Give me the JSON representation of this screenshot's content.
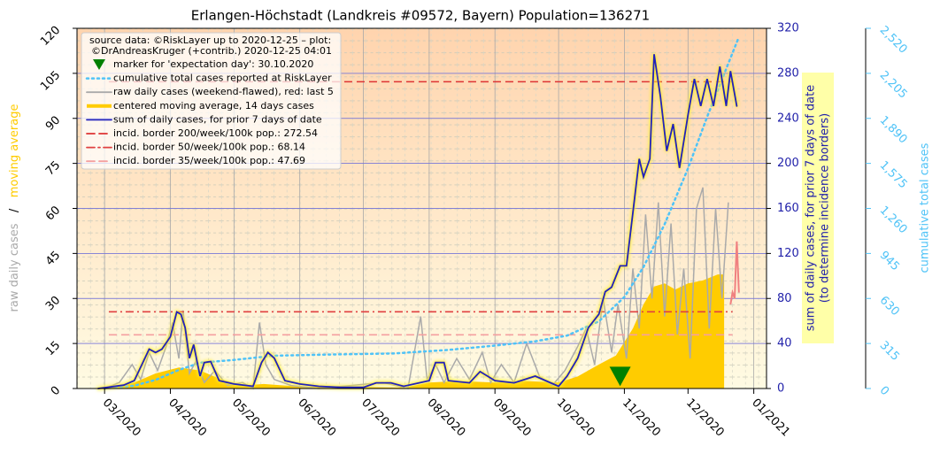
{
  "chart_data": {
    "type": "line",
    "title": "Erlangen-Höchstadt (Landkreis #09572, Bayern) Population=136271",
    "legend_header": [
      "source data: ©RiskLayer up to 2020-12-25 – plot:",
      "©DrAndreasKruger (+contrib.) 2020-12-25 04:01"
    ],
    "legend": "upper left",
    "grid": true,
    "xlim": [
      "2020-02-17",
      "2021-01-07"
    ],
    "xticks": [
      {
        "value": "2020-03-01",
        "label": "03/2020"
      },
      {
        "value": "2020-04-01",
        "label": "04/2020"
      },
      {
        "value": "2020-05-01",
        "label": "05/2020"
      },
      {
        "value": "2020-06-01",
        "label": "06/2020"
      },
      {
        "value": "2020-07-01",
        "label": "07/2020"
      },
      {
        "value": "2020-08-01",
        "label": "08/2020"
      },
      {
        "value": "2020-09-01",
        "label": "09/2020"
      },
      {
        "value": "2020-10-01",
        "label": "10/2020"
      },
      {
        "value": "2020-11-01",
        "label": "11/2020"
      },
      {
        "value": "2020-12-01",
        "label": "12/2020"
      },
      {
        "value": "2021-01-01",
        "label": "01/2021"
      }
    ],
    "ylim": [
      0,
      120
    ],
    "yticks": [
      0,
      15,
      30,
      45,
      60,
      75,
      90,
      105,
      120
    ],
    "ylabel": [
      {
        "text": "raw daily cases",
        "color": "#aaaaaa"
      },
      {
        "text": "/",
        "color": "#000000"
      },
      {
        "text": "moving average",
        "color": "#ffcc00"
      }
    ],
    "y2lim": [
      0,
      320
    ],
    "y2ticks": [
      0,
      40,
      80,
      120,
      160,
      200,
      240,
      280,
      320
    ],
    "y2label": [
      "sum of daily cases, for prior 7 days of date",
      "(to determine incidence borders)"
    ],
    "y3lim": [
      0,
      2520
    ],
    "y3ticks": [
      0,
      315,
      630,
      945,
      {
        "value": 1260,
        "label": "1,260"
      },
      {
        "value": 1575,
        "label": "1,575"
      },
      {
        "value": 1890,
        "label": "1,890"
      },
      {
        "value": 2205,
        "label": "2,205"
      },
      {
        "value": 2520,
        "label": "2,520"
      }
    ],
    "y3label": "cumulative total cases",
    "series": [
      {
        "name": "marker for 'expectation day': 30.10.2020",
        "kind": "marker",
        "color": "#008000",
        "axis": "y",
        "x": [
          "2020-10-30"
        ],
        "values": [
          4
        ]
      },
      {
        "name": "cumulative total cases reported at RiskLayer",
        "kind": "line",
        "style": "dotted",
        "color": "#4fc3f7",
        "axis": "y3",
        "x": [
          "2020-03-01",
          "2020-03-15",
          "2020-03-25",
          "2020-04-05",
          "2020-04-15",
          "2020-05-01",
          "2020-05-20",
          "2020-06-15",
          "2020-07-15",
          "2020-08-10",
          "2020-09-01",
          "2020-09-20",
          "2020-10-05",
          "2020-10-20",
          "2020-11-01",
          "2020-11-10",
          "2020-11-20",
          "2020-12-01",
          "2020-12-10",
          "2020-12-18",
          "2020-12-25"
        ],
        "values": [
          0,
          20,
          60,
          130,
          180,
          200,
          230,
          238,
          245,
          270,
          300,
          330,
          370,
          470,
          640,
          850,
          1150,
          1540,
          1900,
          2200,
          2460
        ]
      },
      {
        "name": "raw daily cases (weekend-flawed), red: last 5",
        "kind": "raw",
        "color": "#aaaaaa",
        "last_color": "#f08080",
        "highlight_last": 5,
        "axis": "y",
        "x": [
          "2020-03-01",
          "2020-03-08",
          "2020-03-14",
          "2020-03-18",
          "2020-03-22",
          "2020-03-26",
          "2020-03-30",
          "2020-04-02",
          "2020-04-05",
          "2020-04-07",
          "2020-04-10",
          "2020-04-13",
          "2020-04-17",
          "2020-04-22",
          "2020-04-28",
          "2020-05-05",
          "2020-05-10",
          "2020-05-13",
          "2020-05-16",
          "2020-05-20",
          "2020-05-28",
          "2020-06-10",
          "2020-06-25",
          "2020-07-10",
          "2020-07-22",
          "2020-07-28",
          "2020-07-31",
          "2020-08-04",
          "2020-08-08",
          "2020-08-14",
          "2020-08-20",
          "2020-08-26",
          "2020-08-30",
          "2020-09-04",
          "2020-09-10",
          "2020-09-16",
          "2020-09-22",
          "2020-09-28",
          "2020-10-04",
          "2020-10-10",
          "2020-10-14",
          "2020-10-18",
          "2020-10-22",
          "2020-10-26",
          "2020-10-29",
          "2020-11-02",
          "2020-11-05",
          "2020-11-08",
          "2020-11-11",
          "2020-11-14",
          "2020-11-17",
          "2020-11-20",
          "2020-11-23",
          "2020-11-26",
          "2020-11-29",
          "2020-12-02",
          "2020-12-05",
          "2020-12-08",
          "2020-12-11",
          "2020-12-14",
          "2020-12-17",
          "2020-12-20",
          "2020-12-21",
          "2020-12-22",
          "2020-12-23",
          "2020-12-24",
          "2020-12-25"
        ],
        "values": [
          0,
          2,
          8,
          3,
          12,
          6,
          14,
          22,
          10,
          26,
          5,
          9,
          2,
          6,
          1,
          2,
          0,
          22,
          8,
          3,
          1,
          0,
          1,
          2,
          0,
          24,
          3,
          8,
          2,
          10,
          3,
          12,
          2,
          8,
          2,
          15,
          4,
          1,
          6,
          14,
          20,
          8,
          30,
          12,
          28,
          10,
          40,
          20,
          58,
          30,
          62,
          24,
          55,
          18,
          40,
          10,
          60,
          67,
          20,
          60,
          30,
          62,
          28,
          32,
          30,
          49,
          32
        ]
      },
      {
        "name": "centered moving average, 14 days cases",
        "kind": "area",
        "color": "#ffcc00",
        "axis": "y",
        "x": [
          "2020-03-01",
          "2020-03-15",
          "2020-03-25",
          "2020-04-05",
          "2020-04-15",
          "2020-04-25",
          "2020-05-05",
          "2020-05-15",
          "2020-05-25",
          "2020-06-10",
          "2020-07-01",
          "2020-07-20",
          "2020-08-01",
          "2020-08-15",
          "2020-09-01",
          "2020-09-15",
          "2020-10-01",
          "2020-10-10",
          "2020-10-20",
          "2020-10-28",
          "2020-11-05",
          "2020-11-10",
          "2020-11-15",
          "2020-11-20",
          "2020-11-25",
          "2020-12-01",
          "2020-12-08",
          "2020-12-15",
          "2020-12-18"
        ],
        "values": [
          0,
          2,
          5,
          7,
          6,
          3,
          1,
          1.5,
          1,
          0.5,
          0.5,
          0.3,
          2,
          2.5,
          2,
          2.5,
          2,
          4,
          8,
          11,
          20,
          28,
          34,
          35,
          33,
          35,
          36,
          38,
          38
        ]
      },
      {
        "name": "sum of daily cases, for prior 7 days of date",
        "kind": "line",
        "style": "solid",
        "color": "#2222bb",
        "axis": "y2",
        "x": [
          "2020-02-27",
          "2020-03-10",
          "2020-03-15",
          "2020-03-20",
          "2020-03-22",
          "2020-03-25",
          "2020-03-28",
          "2020-04-01",
          "2020-04-04",
          "2020-04-06",
          "2020-04-08",
          "2020-04-10",
          "2020-04-12",
          "2020-04-15",
          "2020-04-17",
          "2020-04-20",
          "2020-04-24",
          "2020-05-01",
          "2020-05-10",
          "2020-05-14",
          "2020-05-17",
          "2020-05-20",
          "2020-05-25",
          "2020-06-01",
          "2020-06-10",
          "2020-06-20",
          "2020-07-01",
          "2020-07-07",
          "2020-07-14",
          "2020-07-20",
          "2020-08-01",
          "2020-08-04",
          "2020-08-08",
          "2020-08-10",
          "2020-08-20",
          "2020-08-25",
          "2020-09-01",
          "2020-09-10",
          "2020-09-20",
          "2020-10-01",
          "2020-10-05",
          "2020-10-10",
          "2020-10-15",
          "2020-10-20",
          "2020-10-23",
          "2020-10-26",
          "2020-10-30",
          "2020-11-02",
          "2020-11-05",
          "2020-11-08",
          "2020-11-10",
          "2020-11-13",
          "2020-11-15",
          "2020-11-18",
          "2020-11-21",
          "2020-11-24",
          "2020-11-27",
          "2020-12-01",
          "2020-12-04",
          "2020-12-07",
          "2020-12-10",
          "2020-12-13",
          "2020-12-16",
          "2020-12-19",
          "2020-12-21",
          "2020-12-24"
        ],
        "values": [
          0,
          3,
          7,
          27,
          35,
          32,
          35,
          46,
          68,
          66,
          54,
          27,
          39,
          11,
          23,
          24,
          7,
          4,
          2,
          23,
          32,
          27,
          7,
          4,
          2,
          1,
          1,
          5,
          5,
          2,
          7,
          23,
          23,
          7,
          5,
          15,
          7,
          5,
          11,
          2,
          11,
          27,
          54,
          66,
          86,
          90,
          109,
          109,
          156,
          204,
          188,
          204,
          297,
          259,
          211,
          235,
          196,
          243,
          275,
          251,
          275,
          251,
          286,
          251,
          282,
          251
        ]
      },
      {
        "name": "incid. border 200/week/100k pop.: 272.54",
        "kind": "hline",
        "style": "dashed",
        "color": "#dd3333",
        "axis": "y2",
        "value": 272.54,
        "xrange": [
          "2020-03-03",
          "2020-12-22"
        ]
      },
      {
        "name": "incid. border 50/week/100k pop.: 68.14",
        "kind": "hline",
        "style": "dashdot",
        "color": "#e04040",
        "axis": "y2",
        "value": 68.14,
        "xrange": [
          "2020-03-03",
          "2020-12-22"
        ]
      },
      {
        "name": "incid. border 35/week/100k pop.: 47.69",
        "kind": "hline",
        "style": "dashed",
        "color": "#f4a0a0",
        "axis": "y2",
        "value": 47.69,
        "xrange": [
          "2020-03-03",
          "2020-12-22"
        ]
      }
    ]
  }
}
